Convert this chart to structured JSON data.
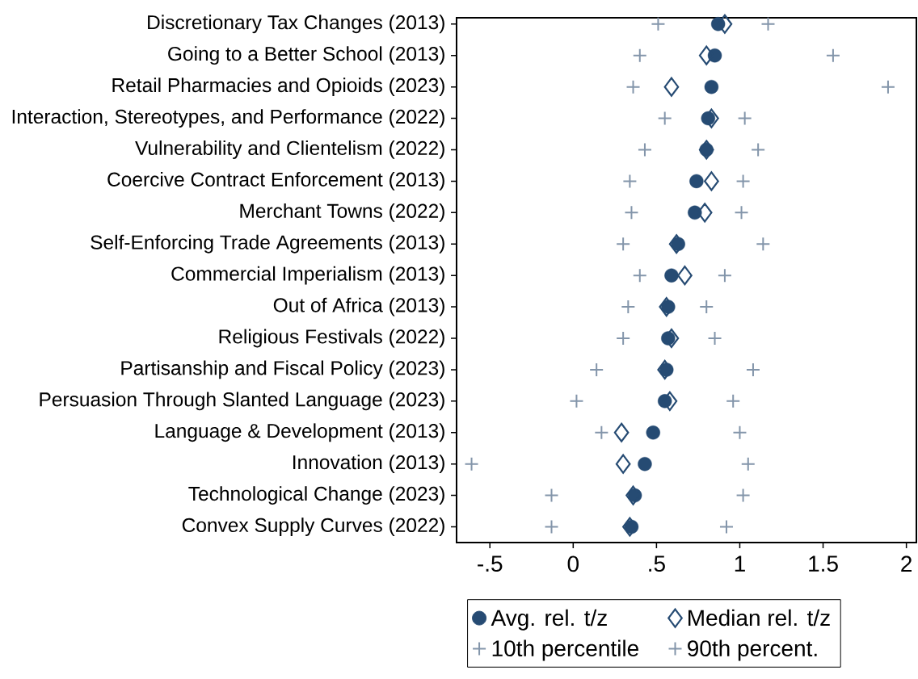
{
  "chart_data": {
    "type": "scatter",
    "orientation": "horizontal",
    "categories": [
      "Discretionary Tax Changes (2013)",
      "Going to a Better School (2013)",
      "Retail Pharmacies and Opioids (2023)",
      "Interaction, Stereotypes, and Performance (2022)",
      "Vulnerability and Clientelism (2022)",
      "Coercive Contract Enforcement (2013)",
      "Merchant Towns (2022)",
      "Self-Enforcing Trade Agreements (2013)",
      "Commercial Imperialism (2013)",
      "Out of Africa (2013)",
      "Religious Festivals (2022)",
      "Partisanship and Fiscal Policy (2023)",
      "Persuasion Through Slanted Language (2023)",
      "Language & Development (2013)",
      "Innovation (2013)",
      "Technological Change (2023)",
      "Convex Supply Curves (2022)"
    ],
    "series": [
      {
        "name": "Avg. rel. t/z",
        "color": "#264b73",
        "marker": "circle",
        "values": [
          0.87,
          0.85,
          0.83,
          0.81,
          0.8,
          0.74,
          0.73,
          0.63,
          0.59,
          0.57,
          0.57,
          0.56,
          0.55,
          0.48,
          0.43,
          0.37,
          0.35
        ]
      },
      {
        "name": "Median rel. t/z",
        "color": "#264b73",
        "marker": "diamond",
        "values": [
          0.91,
          0.8,
          0.59,
          0.83,
          0.8,
          0.83,
          0.79,
          0.62,
          0.67,
          0.56,
          0.59,
          0.55,
          0.58,
          0.29,
          0.3,
          0.36,
          0.34
        ]
      },
      {
        "name": "10th percentile",
        "color": "#8395aa",
        "marker": "cross",
        "values": [
          0.51,
          0.4,
          0.36,
          0.55,
          0.43,
          0.34,
          0.35,
          0.3,
          0.4,
          0.33,
          0.3,
          0.14,
          0.02,
          0.17,
          -0.61,
          -0.13,
          -0.13
        ]
      },
      {
        "name": "90th percent.",
        "color": "#8395aa",
        "marker": "cross",
        "values": [
          1.17,
          1.56,
          1.89,
          1.03,
          1.11,
          1.02,
          1.01,
          1.14,
          0.91,
          0.8,
          0.85,
          1.08,
          0.96,
          1.0,
          1.05,
          1.02,
          0.92
        ]
      }
    ],
    "xlim": [
      -0.7,
      2.06
    ],
    "xticks": [
      {
        "value": -0.5,
        "label": "-.5"
      },
      0,
      {
        "value": 0.5,
        "label": ".5"
      },
      1,
      1.5,
      2
    ],
    "grid": false,
    "legend": "bottom"
  }
}
